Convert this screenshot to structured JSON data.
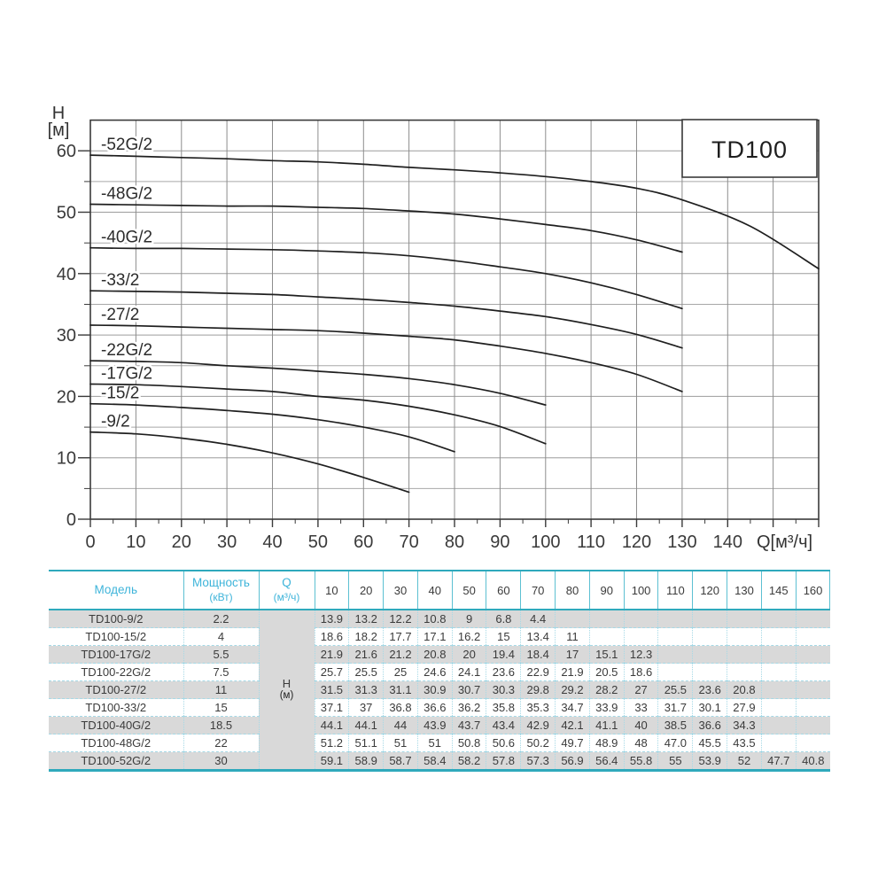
{
  "chart": {
    "y_axis_symbol": "H",
    "y_axis_unit": "[м]",
    "x_axis_label": "Q[м³/ч]",
    "x_tick_labels": [
      0,
      10,
      20,
      30,
      40,
      50,
      60,
      70,
      80,
      90,
      100,
      110,
      120,
      130,
      140
    ],
    "y_tick_labels": [
      0,
      10,
      20,
      30,
      40,
      50,
      60
    ]
  },
  "chart_data": {
    "type": "line",
    "title": "TD100",
    "xlabel": "Q[м³/ч]",
    "ylabel": "H [м]",
    "xlim": [
      0,
      160
    ],
    "ylim": [
      0,
      65
    ],
    "x_grid_step": 10,
    "y_grid_step": 5,
    "grid": true,
    "x": [
      10,
      20,
      30,
      40,
      50,
      60,
      70,
      80,
      90,
      100,
      110,
      120,
      130,
      145,
      160
    ],
    "series": [
      {
        "label": "-9/2",
        "model": "TD100-9/2",
        "power_kw": "2.2",
        "start_h": 14.2,
        "values": [
          "13.9",
          "13.2",
          "12.2",
          "10.8",
          "9",
          "6.8",
          "4.4"
        ]
      },
      {
        "label": "-15/2",
        "model": "TD100-15/2",
        "power_kw": "4",
        "start_h": 18.8,
        "values": [
          "18.6",
          "18.2",
          "17.7",
          "17.1",
          "16.2",
          "15",
          "13.4",
          "11"
        ]
      },
      {
        "label": "-17G/2",
        "model": "TD100-17G/2",
        "power_kw": "5.5",
        "start_h": 22.0,
        "values": [
          "21.9",
          "21.6",
          "21.2",
          "20.8",
          "20",
          "19.4",
          "18.4",
          "17",
          "15.1",
          "12.3"
        ]
      },
      {
        "label": "-22G/2",
        "model": "TD100-22G/2",
        "power_kw": "7.5",
        "start_h": 25.8,
        "values": [
          "25.7",
          "25.5",
          "25",
          "24.6",
          "24.1",
          "23.6",
          "22.9",
          "21.9",
          "20.5",
          "18.6"
        ]
      },
      {
        "label": "-27/2",
        "model": "TD100-27/2",
        "power_kw": "11",
        "start_h": 31.6,
        "values": [
          "31.5",
          "31.3",
          "31.1",
          "30.9",
          "30.7",
          "30.3",
          "29.8",
          "29.2",
          "28.2",
          "27",
          "25.5",
          "23.6",
          "20.8"
        ]
      },
      {
        "label": "-33/2",
        "model": "TD100-33/2",
        "power_kw": "15",
        "start_h": 37.2,
        "values": [
          "37.1",
          "37",
          "36.8",
          "36.6",
          "36.2",
          "35.8",
          "35.3",
          "34.7",
          "33.9",
          "33",
          "31.7",
          "30.1",
          "27.9"
        ]
      },
      {
        "label": "-40G/2",
        "model": "TD100-40G/2",
        "power_kw": "18.5",
        "start_h": 44.2,
        "values": [
          "44.1",
          "44.1",
          "44",
          "43.9",
          "43.7",
          "43.4",
          "42.9",
          "42.1",
          "41.1",
          "40",
          "38.5",
          "36.6",
          "34.3"
        ]
      },
      {
        "label": "-48G/2",
        "model": "TD100-48G/2",
        "power_kw": "22",
        "start_h": 51.3,
        "values": [
          "51.2",
          "51.1",
          "51",
          "51",
          "50.8",
          "50.6",
          "50.2",
          "49.7",
          "48.9",
          "48",
          "47.0",
          "45.5",
          "43.5"
        ]
      },
      {
        "label": "-52G/2",
        "model": "TD100-52G/2",
        "power_kw": "30",
        "start_h": 59.3,
        "values": [
          "59.1",
          "58.9",
          "58.7",
          "58.4",
          "58.2",
          "57.8",
          "57.3",
          "56.9",
          "56.4",
          "55.8",
          "55",
          "53.9",
          "52",
          "47.7",
          "40.8"
        ]
      }
    ]
  },
  "table": {
    "headers": {
      "model": "Модель",
      "power_line1": "Мощность",
      "power_line2": "(кВт)",
      "q_line1": "Q",
      "q_line2": "(м³/ч)"
    },
    "flow_columns": [
      10,
      20,
      30,
      40,
      50,
      60,
      70,
      80,
      90,
      100,
      110,
      120,
      130,
      145,
      160
    ],
    "h_cell_line1": "Н",
    "h_cell_line2": "(м)"
  },
  "colors": {
    "accent_cyan": "#3eb4da",
    "teal_line": "#2fa9bc",
    "teal_line_light": "#5cc0d2",
    "dotted_border": "#a6d9e6",
    "row_grey": "#d9d9d9",
    "curve_black": "#1f1f1f",
    "grid_vertical": "#8d8d8d",
    "grid_horizontal": "#a8a8a8",
    "axis_dark": "#3a3a3a"
  }
}
